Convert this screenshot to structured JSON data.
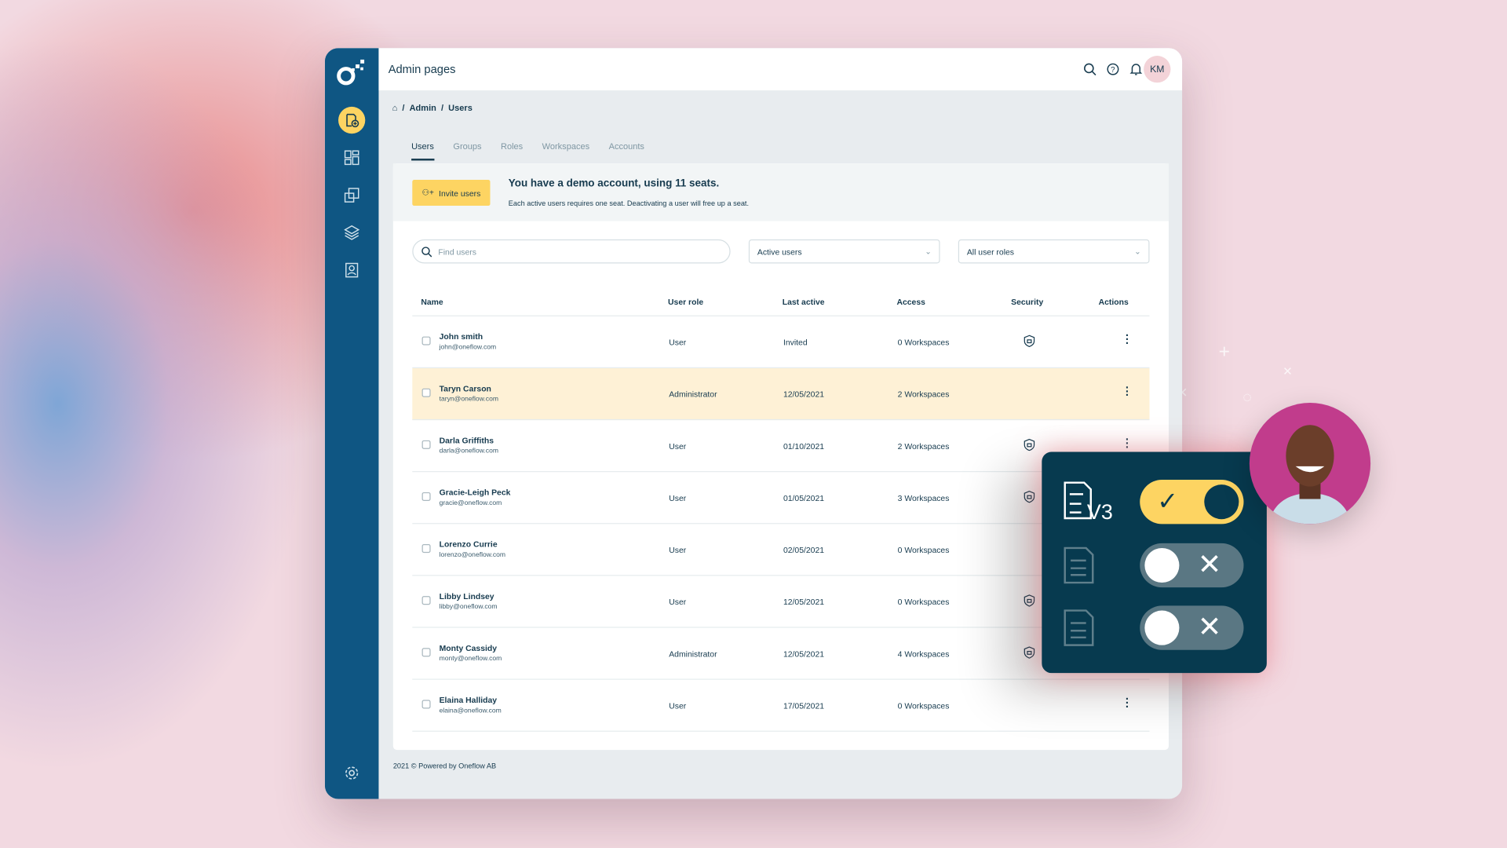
{
  "header": {
    "title": "Admin pages",
    "avatar_initials": "KM"
  },
  "breadcrumb": {
    "items": [
      "Admin",
      "Users"
    ],
    "sep": "/"
  },
  "tabs": [
    {
      "label": "Users",
      "active": true
    },
    {
      "label": "Groups"
    },
    {
      "label": "Roles"
    },
    {
      "label": "Workspaces"
    },
    {
      "label": "Accounts"
    }
  ],
  "banner": {
    "invite_label": "Invite users",
    "title": "You have a demo account, using 11 seats.",
    "subtitle": "Each active users requires one seat. Deactivating a user will free up a seat."
  },
  "filters": {
    "search_placeholder": "Find users",
    "status": "Active users",
    "roles": "All user roles"
  },
  "table": {
    "columns": [
      "Name",
      "User role",
      "Last active",
      "Access",
      "Security",
      "Actions"
    ],
    "rows": [
      {
        "name": "John smith",
        "email": "john@oneflow.com",
        "role": "User",
        "last": "Invited",
        "access": "0 Workspaces",
        "security": true
      },
      {
        "name": "Taryn Carson",
        "email": "taryn@oneflow.com",
        "role": "Administrator",
        "last": "12/05/2021",
        "access": "2 Workspaces",
        "security": false,
        "highlighted": true
      },
      {
        "name": "Darla Griffiths",
        "email": "darla@oneflow.com",
        "role": "User",
        "last": "01/10/2021",
        "access": "2 Workspaces",
        "security": true
      },
      {
        "name": "Gracie-Leigh Peck",
        "email": "gracie@oneflow.com",
        "role": "User",
        "last": "01/05/2021",
        "access": "3 Workspaces",
        "security": true
      },
      {
        "name": "Lorenzo Currie",
        "email": "lorenzo@oneflow.com",
        "role": "User",
        "last": "02/05/2021",
        "access": "0 Workspaces",
        "security": false
      },
      {
        "name": "Libby Lindsey",
        "email": "libby@oneflow.com",
        "role": "User",
        "last": "12/05/2021",
        "access": "0 Workspaces",
        "security": true
      },
      {
        "name": "Monty Cassidy",
        "email": "monty@oneflow.com",
        "role": "Administrator",
        "last": "12/05/2021",
        "access": "4 Workspaces",
        "security": true
      },
      {
        "name": "Elaina Halliday",
        "email": "elaina@oneflow.com",
        "role": "User",
        "last": "17/05/2021",
        "access": "0 Workspaces",
        "security": false
      }
    ]
  },
  "footer": "2021 © Powered by Oneflow AB",
  "overlay": {
    "version_label": "V3",
    "toggles": [
      true,
      false,
      false
    ]
  },
  "colors": {
    "sidebar": "#0f5683",
    "accent": "#fdd462",
    "highlight": "#fef1d6",
    "overlay": "#073a4f",
    "avatar_bg": "#c13c8c"
  }
}
